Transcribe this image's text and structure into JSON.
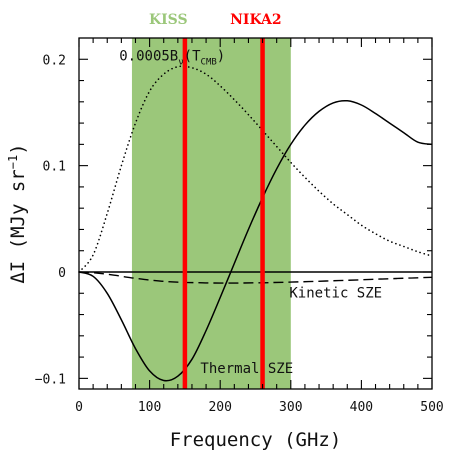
{
  "chart_data": {
    "type": "line",
    "xlabel": "Frequency (GHz)",
    "ylabel": "ΔI (MJy sr",
    "ylabel_exp": "−1",
    "ylabel_close": ")",
    "xlim": [
      0,
      500
    ],
    "ylim": [
      -0.11,
      0.22
    ],
    "x_ticks": [
      0,
      100,
      200,
      300,
      400,
      500
    ],
    "x_tick_labels": [
      "0",
      "100",
      "200",
      "300",
      "400",
      "500"
    ],
    "y_ticks": [
      -0.1,
      0,
      0.1,
      0.2
    ],
    "y_tick_labels": [
      "−0.1",
      "0",
      "0.1",
      "0.2"
    ],
    "grid": false,
    "bands": [
      {
        "label": "KISS",
        "x_range": [
          75,
          300
        ],
        "color": "#9bc77a"
      }
    ],
    "vlines": [
      {
        "label": "NIKA2",
        "x": 150,
        "color": "#ff0000"
      },
      {
        "label": "NIKA2",
        "x": 260,
        "color": "#ff0000"
      }
    ],
    "annotations": {
      "planck": {
        "text": "0.0005B",
        "sub1": "ν",
        "mid": "(T",
        "sub2": "CMB",
        "end": ")"
      },
      "thermal": "Thermal SZE",
      "kinetic": "Kinetic SZE"
    },
    "series": [
      {
        "style": "dotted",
        "x": [
          0,
          20,
          40,
          60,
          80,
          100,
          120,
          140,
          160,
          180,
          200,
          220,
          240,
          260,
          280,
          300,
          320,
          340,
          360,
          380,
          400,
          420,
          440,
          460,
          480,
          500
        ],
        "y": [
          0,
          0.016,
          0.055,
          0.1,
          0.14,
          0.17,
          0.186,
          0.193,
          0.192,
          0.186,
          0.175,
          0.162,
          0.148,
          0.133,
          0.118,
          0.103,
          0.089,
          0.076,
          0.064,
          0.054,
          0.044,
          0.036,
          0.029,
          0.024,
          0.019,
          0.015
        ]
      },
      {
        "style": "solid",
        "x": [
          0,
          20,
          40,
          60,
          80,
          100,
          120,
          140,
          160,
          180,
          200,
          220,
          240,
          260,
          280,
          300,
          320,
          340,
          360,
          380,
          400,
          420,
          440,
          460,
          480,
          500
        ],
        "y": [
          0,
          -0.004,
          -0.02,
          -0.045,
          -0.072,
          -0.093,
          -0.102,
          -0.098,
          -0.082,
          -0.055,
          -0.024,
          0.008,
          0.04,
          0.07,
          0.097,
          0.12,
          0.138,
          0.151,
          0.159,
          0.161,
          0.157,
          0.149,
          0.14,
          0.131,
          0.122,
          0.12
        ]
      },
      {
        "style": "dashed",
        "x": [
          0,
          25,
          50,
          75,
          100,
          125,
          150,
          175,
          200,
          225,
          250,
          275,
          300,
          325,
          350,
          375,
          400,
          425,
          450,
          475,
          500
        ],
        "y": [
          0,
          -0.001,
          -0.003,
          -0.0055,
          -0.0075,
          -0.009,
          -0.0098,
          -0.0102,
          -0.0104,
          -0.0104,
          -0.0102,
          -0.0099,
          -0.0095,
          -0.009,
          -0.0085,
          -0.0079,
          -0.0073,
          -0.0067,
          -0.0061,
          -0.0055,
          -0.005
        ]
      }
    ]
  }
}
